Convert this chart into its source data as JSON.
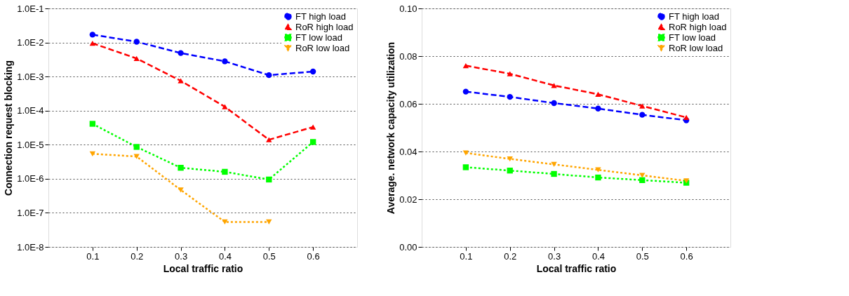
{
  "chart_data": [
    {
      "type": "line",
      "xlabel": "Local traffic ratio",
      "ylabel": "Connection request blocking",
      "log": "y",
      "grid": "y",
      "legend": "top right",
      "x": [
        0.1,
        0.2,
        0.3,
        0.4,
        0.5,
        0.6
      ],
      "xlim": [
        0.0,
        0.7
      ],
      "xticks": [
        0.1,
        0.2,
        0.3,
        0.4,
        0.5,
        0.6
      ],
      "ylim": [
        1e-08,
        0.1
      ],
      "yticks": [
        {
          "value": 0.1,
          "label": "1.0E-1"
        },
        {
          "value": 0.01,
          "label": "1.0E-2"
        },
        {
          "value": 0.001,
          "label": "1.0E-3"
        },
        {
          "value": 0.0001,
          "label": "1.0E-4"
        },
        {
          "value": 1e-05,
          "label": "1.0E-5"
        },
        {
          "value": 1e-06,
          "label": "1.0E-6"
        },
        {
          "value": 1e-07,
          "label": "1.0E-7"
        },
        {
          "value": 1e-08,
          "label": "1.0E-8"
        }
      ],
      "series": [
        {
          "name": "FT high load",
          "color": "#0000ff",
          "marker": "circle",
          "line_style": "dashed",
          "values": [
            0.017,
            0.0105,
            0.0049,
            0.0028,
            0.0011,
            0.0014
          ]
        },
        {
          "name": "RoR high load",
          "color": "#ff0000",
          "marker": "triangle",
          "line_style": "dashed",
          "values": [
            0.0095,
            0.0034,
            0.00075,
            0.00013,
            1.4e-05,
            3.3e-05
          ]
        },
        {
          "name": "FT low load",
          "color": "#00ff00",
          "marker": "square",
          "line_style": "dotted",
          "values": [
            4.1e-05,
            8.6e-06,
            2.1e-06,
            1.6e-06,
            9.5e-07,
            1.2e-05
          ]
        },
        {
          "name": "RoR low load",
          "color": "#ffa500",
          "marker": "triangle-down",
          "line_style": "dotted",
          "values": [
            5.4e-06,
            4.5e-06,
            4.7e-07,
            5.4e-08,
            5.4e-08,
            null
          ]
        }
      ]
    },
    {
      "type": "line",
      "xlabel": "Local traffic ratio",
      "ylabel": "Average. network capacity utilization",
      "grid": "y",
      "legend": "top right",
      "x": [
        0.1,
        0.2,
        0.3,
        0.4,
        0.5,
        0.6
      ],
      "xlim": [
        0.0,
        0.7
      ],
      "xticks": [
        0.1,
        0.2,
        0.3,
        0.4,
        0.5,
        0.6
      ],
      "ylim": [
        0,
        0.1
      ],
      "yticks": [
        {
          "value": 0,
          "label": "0.00"
        },
        {
          "value": 0.02,
          "label": "0.02"
        },
        {
          "value": 0.04,
          "label": "0.04"
        },
        {
          "value": 0.06,
          "label": "0.06"
        },
        {
          "value": 0.08,
          "label": "0.08"
        },
        {
          "value": 0.1,
          "label": "0.10"
        }
      ],
      "series": [
        {
          "name": "FT high load",
          "color": "#0000ff",
          "marker": "circle",
          "line_style": "dashed",
          "values": [
            0.0651,
            0.0629,
            0.0603,
            0.058,
            0.0554,
            0.0531
          ]
        },
        {
          "name": "RoR high load",
          "color": "#ff0000",
          "marker": "triangle",
          "line_style": "dashed",
          "values": [
            0.076,
            0.0726,
            0.0677,
            0.064,
            0.0591,
            0.0543
          ]
        },
        {
          "name": "FT low load",
          "color": "#00ff00",
          "marker": "square",
          "line_style": "dotted",
          "values": [
            0.0334,
            0.032,
            0.0306,
            0.0291,
            0.028,
            0.0269
          ]
        },
        {
          "name": "RoR low load",
          "color": "#ffa500",
          "marker": "triangle-down",
          "line_style": "dotted",
          "values": [
            0.0394,
            0.0369,
            0.0346,
            0.0323,
            0.03,
            0.0277
          ]
        }
      ]
    }
  ]
}
